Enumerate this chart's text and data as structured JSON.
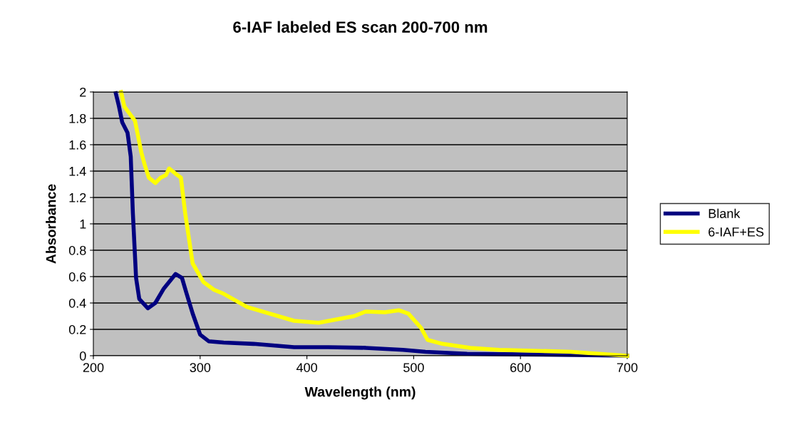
{
  "chart_data": {
    "type": "line",
    "title": "6-IAF labeled ES scan 200-700 nm",
    "xlabel": "Wavelength (nm)",
    "ylabel": "Absorbance",
    "xlim": [
      200,
      700
    ],
    "xticks": [
      200,
      300,
      400,
      500,
      600,
      700
    ],
    "ylim": [
      0,
      2
    ],
    "yticks": [
      0,
      0.2,
      0.4,
      0.6,
      0.8,
      1,
      1.2,
      1.4,
      1.6,
      1.8,
      2
    ],
    "grid": "y",
    "legend": "right",
    "marker": "none",
    "line_style": "solid",
    "series": [
      {
        "name": "Blank",
        "color": "#000080",
        "x": [
          221,
          224,
          227,
          232,
          235,
          237,
          240,
          243,
          251,
          258,
          266,
          273,
          277,
          283,
          287,
          293,
          300,
          308,
          322,
          350,
          388,
          420,
          455,
          490,
          511,
          550,
          600,
          650,
          700
        ],
        "values": [
          1.99,
          1.89,
          1.77,
          1.69,
          1.51,
          1.08,
          0.59,
          0.43,
          0.36,
          0.4,
          0.51,
          0.58,
          0.62,
          0.59,
          0.48,
          0.32,
          0.16,
          0.11,
          0.1,
          0.09,
          0.065,
          0.065,
          0.06,
          0.045,
          0.03,
          0.015,
          0.01,
          0.005,
          0
        ]
      },
      {
        "name": "6-IAF+ES",
        "color": "#ffff00",
        "x": [
          226,
          229,
          239,
          245,
          248,
          252,
          258,
          263,
          268,
          271,
          277,
          282,
          286,
          293,
          303,
          313,
          322,
          344,
          388,
          411,
          444,
          455,
          473,
          486,
          495,
          507,
          513,
          527,
          553,
          580,
          647,
          700
        ],
        "values": [
          2.0,
          1.89,
          1.78,
          1.54,
          1.45,
          1.35,
          1.31,
          1.35,
          1.37,
          1.42,
          1.38,
          1.35,
          1.08,
          0.7,
          0.56,
          0.5,
          0.47,
          0.37,
          0.265,
          0.25,
          0.3,
          0.335,
          0.33,
          0.345,
          0.32,
          0.21,
          0.12,
          0.09,
          0.06,
          0.045,
          0.03,
          0
        ]
      }
    ]
  }
}
